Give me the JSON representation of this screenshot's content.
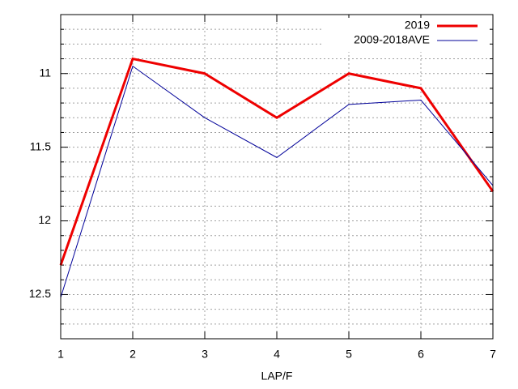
{
  "chart_data": {
    "type": "line",
    "xlabel": "LAP/F",
    "x": [
      1,
      2,
      3,
      4,
      5,
      6,
      7
    ],
    "xlim": [
      1,
      7
    ],
    "xticks": [
      1,
      2,
      3,
      4,
      5,
      6,
      7
    ],
    "ylim": [
      10.6,
      12.8
    ],
    "y_reversed": true,
    "yticks": [
      11,
      11.5,
      12,
      12.5
    ],
    "yminorticks": [
      10.6,
      10.7,
      10.8,
      10.9,
      11.1,
      11.2,
      11.3,
      11.4,
      11.6,
      11.7,
      11.8,
      11.9,
      12.1,
      12.2,
      12.3,
      12.4,
      12.6,
      12.7,
      12.8
    ],
    "grid": true,
    "legend": "top-right",
    "series": [
      {
        "name": "2019",
        "color": "#ee0000",
        "width": 3,
        "values": [
          12.3,
          10.9,
          11.0,
          11.3,
          11.0,
          11.1,
          11.8
        ]
      },
      {
        "name": "2009-2018AVE",
        "color": "#000099",
        "width": 1,
        "values": [
          12.52,
          10.95,
          11.3,
          11.57,
          11.21,
          11.18,
          11.76
        ]
      }
    ]
  }
}
